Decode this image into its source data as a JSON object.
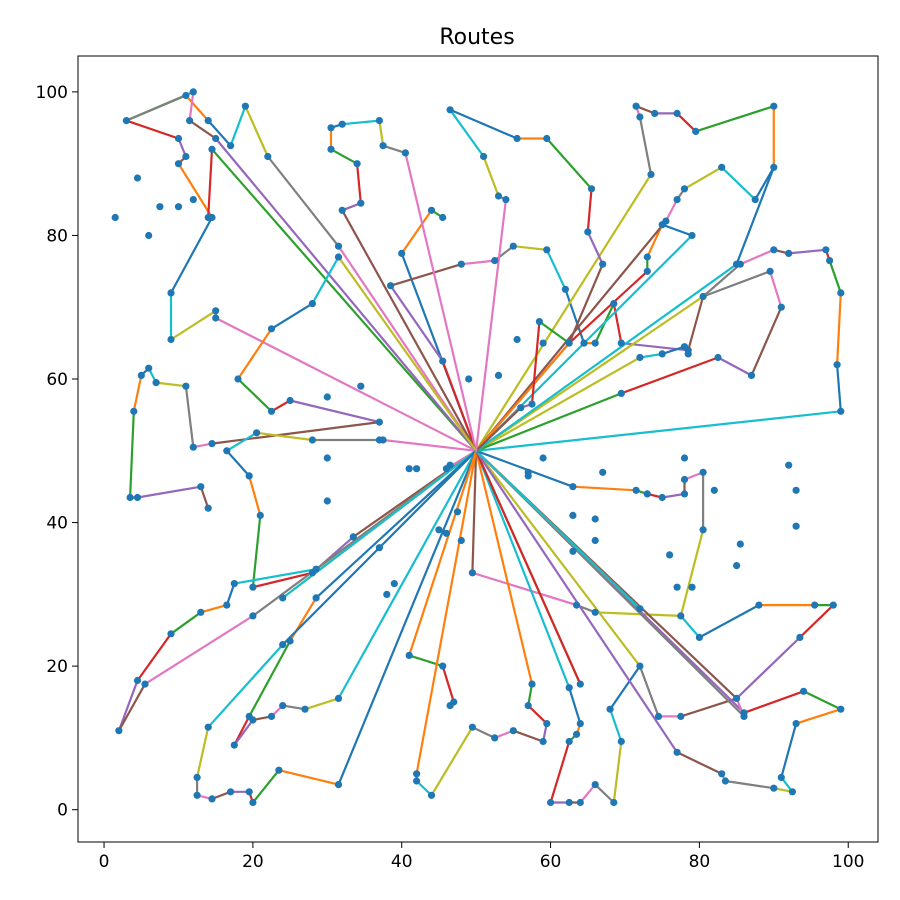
{
  "chart_data": {
    "type": "line",
    "title": "Routes",
    "xlabel": "",
    "ylabel": "",
    "xlim": [
      -3.5,
      104
    ],
    "ylim": [
      -4.5,
      105
    ],
    "xticks": [
      0,
      20,
      40,
      60,
      80,
      100
    ],
    "yticks": [
      0,
      20,
      40,
      60,
      80,
      100
    ],
    "grid": false,
    "legend": "none",
    "depot": [
      50,
      50
    ],
    "colors": [
      "#1f77b4",
      "#ff7f0e",
      "#2ca02c",
      "#d62728",
      "#9467bd",
      "#8c564b",
      "#e377c2",
      "#7f7f7f",
      "#bcbd22",
      "#17becf"
    ],
    "routes": [
      [
        [
          50,
          50
        ],
        [
          40,
          77.5
        ],
        [
          44,
          83.5
        ],
        [
          45.5,
          82.5
        ]
      ],
      [
        [
          50,
          50
        ],
        [
          45.5,
          62.5
        ],
        [
          38.5,
          73
        ],
        [
          48,
          76
        ],
        [
          52.5,
          76.5
        ],
        [
          55,
          78.5
        ],
        [
          59.5,
          78
        ],
        [
          62,
          72.5
        ],
        [
          64.5,
          65
        ],
        [
          66,
          65
        ],
        [
          68.5,
          70.5
        ],
        [
          69.5,
          65
        ],
        [
          78.5,
          64
        ],
        [
          80.5,
          71.5
        ]
      ],
      [
        [
          50,
          50
        ],
        [
          31.5,
          78.5
        ],
        [
          22,
          91
        ],
        [
          19,
          98
        ],
        [
          17,
          92.5
        ],
        [
          14,
          96
        ],
        [
          11,
          99.5
        ],
        [
          3,
          96
        ],
        [
          10,
          93.5
        ],
        [
          11,
          91
        ],
        [
          10,
          90
        ]
      ],
      [
        [
          50,
          50
        ],
        [
          40.5,
          91.5
        ],
        [
          37.5,
          92.5
        ],
        [
          37,
          96
        ],
        [
          32,
          95.5
        ],
        [
          30.5,
          95
        ],
        [
          30.5,
          92
        ],
        [
          34,
          90
        ],
        [
          34.5,
          84.5
        ],
        [
          32,
          83.5
        ],
        [
          50,
          50
        ]
      ],
      [
        [
          50,
          50
        ],
        [
          15,
          68.5
        ],
        [
          15,
          69.5
        ],
        [
          9,
          65.5
        ],
        [
          9,
          72
        ],
        [
          14.5,
          82.5
        ],
        [
          10,
          90
        ]
      ],
      [
        [
          50,
          50
        ],
        [
          14.5,
          92
        ],
        [
          14,
          82.5
        ]
      ],
      [
        [
          50,
          50
        ],
        [
          15,
          93.5
        ],
        [
          11.5,
          96
        ],
        [
          12,
          100
        ],
        [
          3,
          96
        ]
      ],
      [
        [
          50,
          50
        ],
        [
          31.5,
          77
        ],
        [
          28,
          70.5
        ],
        [
          22.5,
          67
        ],
        [
          18,
          60
        ],
        [
          22.5,
          55.5
        ],
        [
          25,
          57
        ],
        [
          37,
          54
        ],
        [
          14.5,
          51
        ],
        [
          12,
          50.5
        ],
        [
          11,
          59
        ],
        [
          7,
          59.5
        ],
        [
          6,
          61.5
        ],
        [
          5,
          60.5
        ],
        [
          4,
          55.5
        ],
        [
          3.5,
          43.5
        ],
        [
          4.5,
          43.5
        ],
        [
          13,
          45
        ],
        [
          14,
          42
        ]
      ],
      [
        [
          50,
          50
        ],
        [
          37.5,
          51.5
        ],
        [
          28,
          51.5
        ],
        [
          20.5,
          52.5
        ],
        [
          16.5,
          50
        ],
        [
          19.5,
          46.5
        ],
        [
          21,
          41
        ],
        [
          20,
          31
        ],
        [
          28,
          33
        ],
        [
          33.5,
          38
        ],
        [
          50,
          50
        ]
      ],
      [
        [
          50,
          50
        ],
        [
          46,
          47.5
        ],
        [
          46.5,
          48
        ]
      ],
      [
        [
          50,
          50
        ],
        [
          28.5,
          33.5
        ],
        [
          17.5,
          31.5
        ],
        [
          16.5,
          28.5
        ],
        [
          13,
          27.5
        ],
        [
          9,
          24.5
        ],
        [
          4.5,
          18
        ],
        [
          2,
          11
        ],
        [
          5.5,
          17.5
        ],
        [
          20,
          27
        ],
        [
          50,
          50
        ]
      ],
      [
        [
          50,
          50
        ],
        [
          24,
          29.5
        ],
        [
          50,
          50
        ]
      ],
      [
        [
          50,
          50
        ],
        [
          28.5,
          29.5
        ],
        [
          25,
          23.5
        ],
        [
          19.5,
          13
        ],
        [
          17.5,
          9
        ],
        [
          20,
          12.5
        ],
        [
          22.5,
          13
        ],
        [
          24,
          14.5
        ],
        [
          27,
          14
        ],
        [
          31.5,
          15.5
        ],
        [
          50,
          50
        ]
      ],
      [
        [
          50,
          50
        ],
        [
          31.5,
          3.5
        ],
        [
          23.5,
          5.5
        ],
        [
          20,
          1
        ],
        [
          19.5,
          2.5
        ],
        [
          17,
          2.5
        ],
        [
          14.5,
          1.5
        ],
        [
          12.5,
          2
        ],
        [
          12.5,
          4.5
        ],
        [
          14,
          11.5
        ],
        [
          24,
          23
        ],
        [
          50,
          50
        ]
      ],
      [
        [
          50,
          50
        ],
        [
          41,
          21.5
        ],
        [
          45.5,
          20
        ],
        [
          47,
          15
        ],
        [
          46.5,
          14.5
        ]
      ],
      [
        [
          50,
          50
        ],
        [
          49.5,
          33
        ],
        [
          63.5,
          28.5
        ],
        [
          66,
          27.5
        ],
        [
          77.5,
          27
        ],
        [
          80,
          24
        ],
        [
          88,
          28.5
        ],
        [
          95.5,
          28.5
        ],
        [
          98,
          28.5
        ],
        [
          93.5,
          24
        ],
        [
          85,
          15.5
        ],
        [
          77.5,
          13
        ],
        [
          74.5,
          13
        ],
        [
          72,
          20
        ],
        [
          50,
          50
        ]
      ],
      [
        [
          50,
          50
        ],
        [
          62.5,
          17
        ],
        [
          64,
          12
        ],
        [
          63.5,
          10.5
        ],
        [
          62.5,
          9.5
        ],
        [
          60,
          1
        ],
        [
          62.5,
          1
        ],
        [
          64,
          1
        ],
        [
          66,
          3.5
        ],
        [
          68.5,
          1
        ],
        [
          69.5,
          9.5
        ],
        [
          68,
          14
        ],
        [
          72,
          20
        ]
      ],
      [
        [
          50,
          50
        ],
        [
          57.5,
          17.5
        ],
        [
          57,
          14.5
        ],
        [
          59.5,
          12
        ],
        [
          59,
          9.5
        ],
        [
          55,
          11
        ],
        [
          52.5,
          10
        ],
        [
          49.5,
          11.5
        ],
        [
          44,
          2
        ],
        [
          42,
          4
        ],
        [
          42,
          5
        ],
        [
          50,
          50
        ]
      ],
      [
        [
          50,
          50
        ],
        [
          64,
          17.5
        ],
        [
          50,
          50
        ]
      ],
      [
        [
          50,
          50
        ],
        [
          77,
          8
        ],
        [
          83,
          5
        ],
        [
          83.5,
          4
        ],
        [
          90,
          3
        ],
        [
          92.5,
          2.5
        ],
        [
          91,
          4.5
        ],
        [
          93,
          12
        ],
        [
          99,
          14
        ],
        [
          94,
          16.5
        ],
        [
          86,
          13.5
        ],
        [
          50,
          50
        ]
      ],
      [
        [
          50,
          50
        ],
        [
          85,
          15.5
        ],
        [
          86,
          13
        ],
        [
          50,
          50
        ]
      ],
      [
        [
          50,
          50
        ],
        [
          72,
          28
        ],
        [
          50,
          50
        ]
      ],
      [
        [
          50,
          50
        ],
        [
          63,
          45
        ],
        [
          71.5,
          44.5
        ],
        [
          73,
          44
        ],
        [
          75,
          43.5
        ],
        [
          78,
          44
        ],
        [
          78,
          46
        ],
        [
          80.5,
          47
        ],
        [
          80.5,
          39
        ],
        [
          77.5,
          27
        ]
      ],
      [
        [
          50,
          50
        ],
        [
          99,
          55.5
        ],
        [
          98.5,
          62
        ],
        [
          99,
          72
        ],
        [
          97.5,
          76.5
        ],
        [
          97,
          78
        ],
        [
          92,
          77.5
        ],
        [
          90,
          78
        ],
        [
          85.5,
          76
        ],
        [
          80.5,
          71.5
        ]
      ],
      [
        [
          50,
          50
        ],
        [
          72,
          63
        ],
        [
          75,
          63.5
        ],
        [
          78,
          64.5
        ],
        [
          78.5,
          63.5
        ]
      ],
      [
        [
          50,
          50
        ],
        [
          69.5,
          58
        ],
        [
          82.5,
          63
        ],
        [
          87,
          60.5
        ],
        [
          91,
          70
        ],
        [
          89.5,
          75
        ],
        [
          80.5,
          71.5
        ],
        [
          50,
          50
        ]
      ],
      [
        [
          50,
          50
        ],
        [
          85,
          76
        ],
        [
          90,
          89.5
        ],
        [
          90,
          98
        ],
        [
          79.5,
          94.5
        ],
        [
          77,
          97
        ],
        [
          74,
          97
        ],
        [
          71.5,
          98
        ],
        [
          72,
          96.5
        ],
        [
          73.5,
          88.5
        ],
        [
          50,
          50
        ]
      ],
      [
        [
          50,
          50
        ],
        [
          79,
          80
        ],
        [
          75,
          81.5
        ],
        [
          73,
          77
        ],
        [
          73,
          75
        ],
        [
          62.5,
          65
        ],
        [
          50,
          50
        ]
      ],
      [
        [
          50,
          50
        ],
        [
          75.5,
          82
        ],
        [
          77,
          85
        ],
        [
          78,
          86.5
        ],
        [
          83,
          89.5
        ],
        [
          87.5,
          85
        ],
        [
          90,
          89.5
        ]
      ],
      [
        [
          50,
          50
        ],
        [
          62.5,
          65
        ],
        [
          58.5,
          68
        ],
        [
          57.5,
          56.5
        ],
        [
          56,
          56
        ],
        [
          50,
          50
        ]
      ],
      [
        [
          50,
          50
        ],
        [
          54,
          85
        ],
        [
          53,
          85.5
        ],
        [
          51,
          91
        ],
        [
          46.5,
          97.5
        ],
        [
          55.5,
          93.5
        ],
        [
          59.5,
          93.5
        ],
        [
          65.5,
          86.5
        ],
        [
          65,
          80.5
        ],
        [
          67,
          76
        ],
        [
          62.5,
          65
        ]
      ]
    ],
    "stray_points": [
      [
        1.5,
        82.5
      ],
      [
        4.5,
        88
      ],
      [
        6,
        80
      ],
      [
        7.5,
        84
      ],
      [
        10,
        84
      ],
      [
        12,
        85
      ],
      [
        30,
        57.5
      ],
      [
        34.5,
        59
      ],
      [
        37,
        51.5
      ],
      [
        30,
        49
      ],
      [
        30,
        43
      ],
      [
        37,
        36.5
      ],
      [
        38,
        30
      ],
      [
        39,
        31.5
      ],
      [
        41,
        47.5
      ],
      [
        42,
        47.5
      ],
      [
        45,
        39
      ],
      [
        46,
        38.5
      ],
      [
        48,
        37.5
      ],
      [
        47.5,
        41.5
      ],
      [
        49,
        60
      ],
      [
        53,
        60.5
      ],
      [
        55.5,
        65.5
      ],
      [
        59,
        65
      ],
      [
        57,
        47
      ],
      [
        57,
        46.5
      ],
      [
        59,
        49
      ],
      [
        63,
        41
      ],
      [
        66,
        40.5
      ],
      [
        66,
        37.5
      ],
      [
        63,
        36
      ],
      [
        67,
        47
      ],
      [
        76,
        35.5
      ],
      [
        77,
        31
      ],
      [
        79,
        31
      ],
      [
        78,
        49
      ],
      [
        82,
        44.5
      ],
      [
        85,
        34
      ],
      [
        85.5,
        37
      ],
      [
        92,
        48
      ],
      [
        93,
        44.5
      ],
      [
        93,
        39.5
      ]
    ]
  }
}
